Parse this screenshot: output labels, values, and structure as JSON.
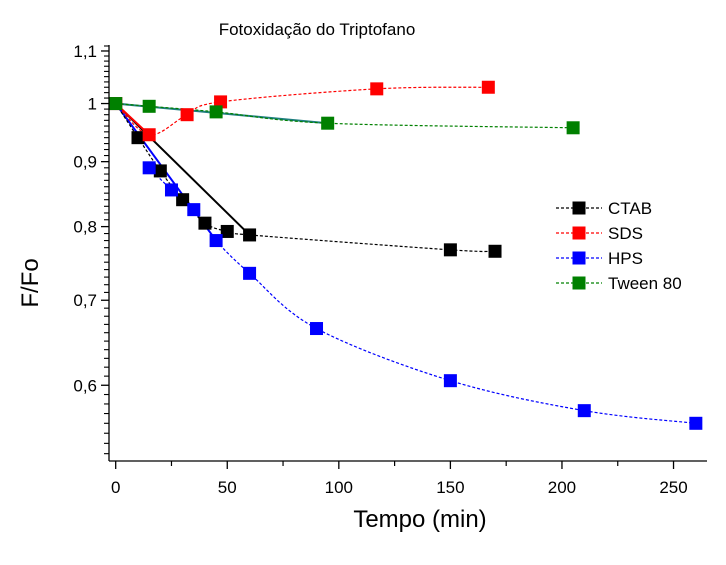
{
  "chart_data": {
    "type": "scatter",
    "title": "Fotoxidação do Triptofano",
    "xlabel": "Tempo (min)",
    "ylabel": "F/Fo",
    "xlim": [
      -3,
      265
    ],
    "ylim": [
      0.523,
      1.112
    ],
    "y_scale": "log",
    "x_ticks": [
      0,
      50,
      100,
      150,
      200,
      250
    ],
    "x_tick_labels": [
      "0",
      "50",
      "100",
      "150",
      "200",
      "250"
    ],
    "y_ticks": [
      0.6,
      0.7,
      0.8,
      0.9,
      1.0,
      1.1
    ],
    "y_tick_labels": [
      "0,6",
      "0,7",
      "0,8",
      "0,9",
      "1",
      "1,1"
    ],
    "grid": false,
    "legend_position": "right",
    "series": [
      {
        "name": "CTAB",
        "color": "#000000",
        "x": [
          0,
          10,
          20,
          30,
          40,
          50,
          60,
          150,
          170
        ],
        "y": [
          1.0,
          0.94,
          0.885,
          0.84,
          0.805,
          0.793,
          0.788,
          0.767,
          0.765
        ]
      },
      {
        "name": "SDS",
        "color": "#ff0000",
        "x": [
          0,
          15,
          32,
          47,
          117,
          167
        ],
        "y": [
          1.0,
          0.945,
          0.98,
          1.003,
          1.027,
          1.03
        ]
      },
      {
        "name": "HPS",
        "color": "#0000ff",
        "x": [
          15,
          25,
          35,
          45,
          60,
          90,
          150,
          210,
          260
        ],
        "y": [
          0.89,
          0.855,
          0.825,
          0.78,
          0.735,
          0.665,
          0.605,
          0.573,
          0.56
        ]
      },
      {
        "name": "Tween 80",
        "color": "#008000",
        "x": [
          0,
          15,
          45,
          95,
          205
        ],
        "y": [
          1.0,
          0.995,
          0.985,
          0.965,
          0.957
        ]
      }
    ]
  }
}
